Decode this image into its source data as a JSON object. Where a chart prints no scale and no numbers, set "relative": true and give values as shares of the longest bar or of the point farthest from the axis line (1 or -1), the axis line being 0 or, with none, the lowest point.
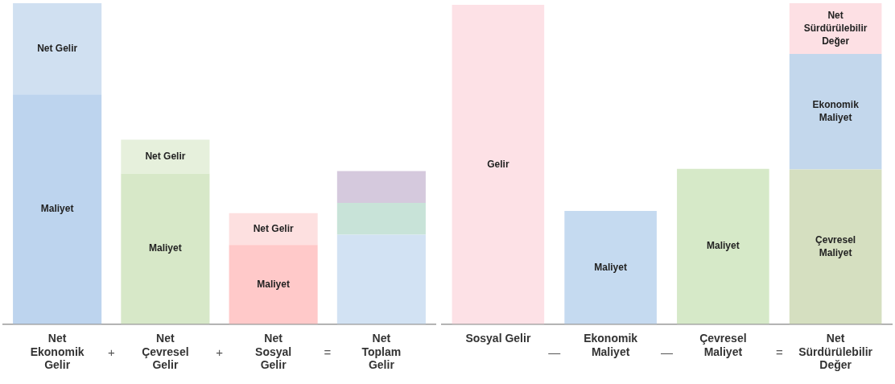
{
  "chart_data": [
    {
      "type": "bar",
      "stacked": true,
      "relative": true,
      "legend": false,
      "grid": false,
      "categories": [
        "Net\nEkonomik\nGelir",
        "Net\nÇevresel\nGelir",
        "Net\nSosyal\nGelir",
        "Net\nToplam\nGelir"
      ],
      "annotations": [
        "+",
        "+",
        "="
      ],
      "series": [
        {
          "name": "Maliyet",
          "colors": [
            "#bdd4ee",
            "#d7e8c8",
            "#ffc9c9",
            "#d2e2f3"
          ],
          "values": [
            0.716,
            0.469,
            0.247,
            null
          ]
        },
        {
          "name": "Net Gelir",
          "colors": [
            "#d0e0f1",
            "#e6f0dc",
            "#fde0e0",
            "#c8e3d8"
          ],
          "values": [
            0.284,
            0.106,
            0.099,
            null
          ]
        },
        {
          "color": "#d2e2f3",
          "values": [
            null,
            null,
            null,
            0.279
          ]
        },
        {
          "color": "#c8e3d8",
          "values": [
            null,
            null,
            null,
            0.099
          ]
        },
        {
          "color": "#d5c9dd",
          "values": [
            null,
            null,
            null,
            0.099
          ]
        }
      ]
    },
    {
      "type": "bar",
      "stacked": true,
      "relative": true,
      "legend": false,
      "grid": false,
      "categories": [
        "Sosyal Gelir",
        "Ekonomik\nMaliyet",
        "Çevresel\nMaliyet",
        "Net\nSürdürülebilir\nDeğer"
      ],
      "annotations": [
        "—",
        "—",
        "="
      ],
      "series": [
        {
          "name": "Gelir",
          "color": "#fde1e6",
          "values": [
            0.995,
            null,
            null,
            null
          ]
        },
        {
          "name": "Maliyet",
          "colors": [
            "#c5daf0",
            "#c5daf0",
            "#d6e9c8",
            "#d6e9c8"
          ],
          "values": [
            null,
            0.353,
            0.484,
            null
          ]
        },
        {
          "name": "Çevresel\nMaliyet",
          "color": "#d5dfc0",
          "values": [
            null,
            null,
            null,
            0.482
          ]
        },
        {
          "name": "Ekonomik\nMaliyet",
          "color": "#c3d7ec",
          "values": [
            null,
            null,
            null,
            0.36
          ]
        },
        {
          "name": "Net\nSürdürülebilir\nDeğer",
          "color": "#fde0e4",
          "values": [
            null,
            null,
            null,
            0.158
          ]
        }
      ]
    }
  ]
}
